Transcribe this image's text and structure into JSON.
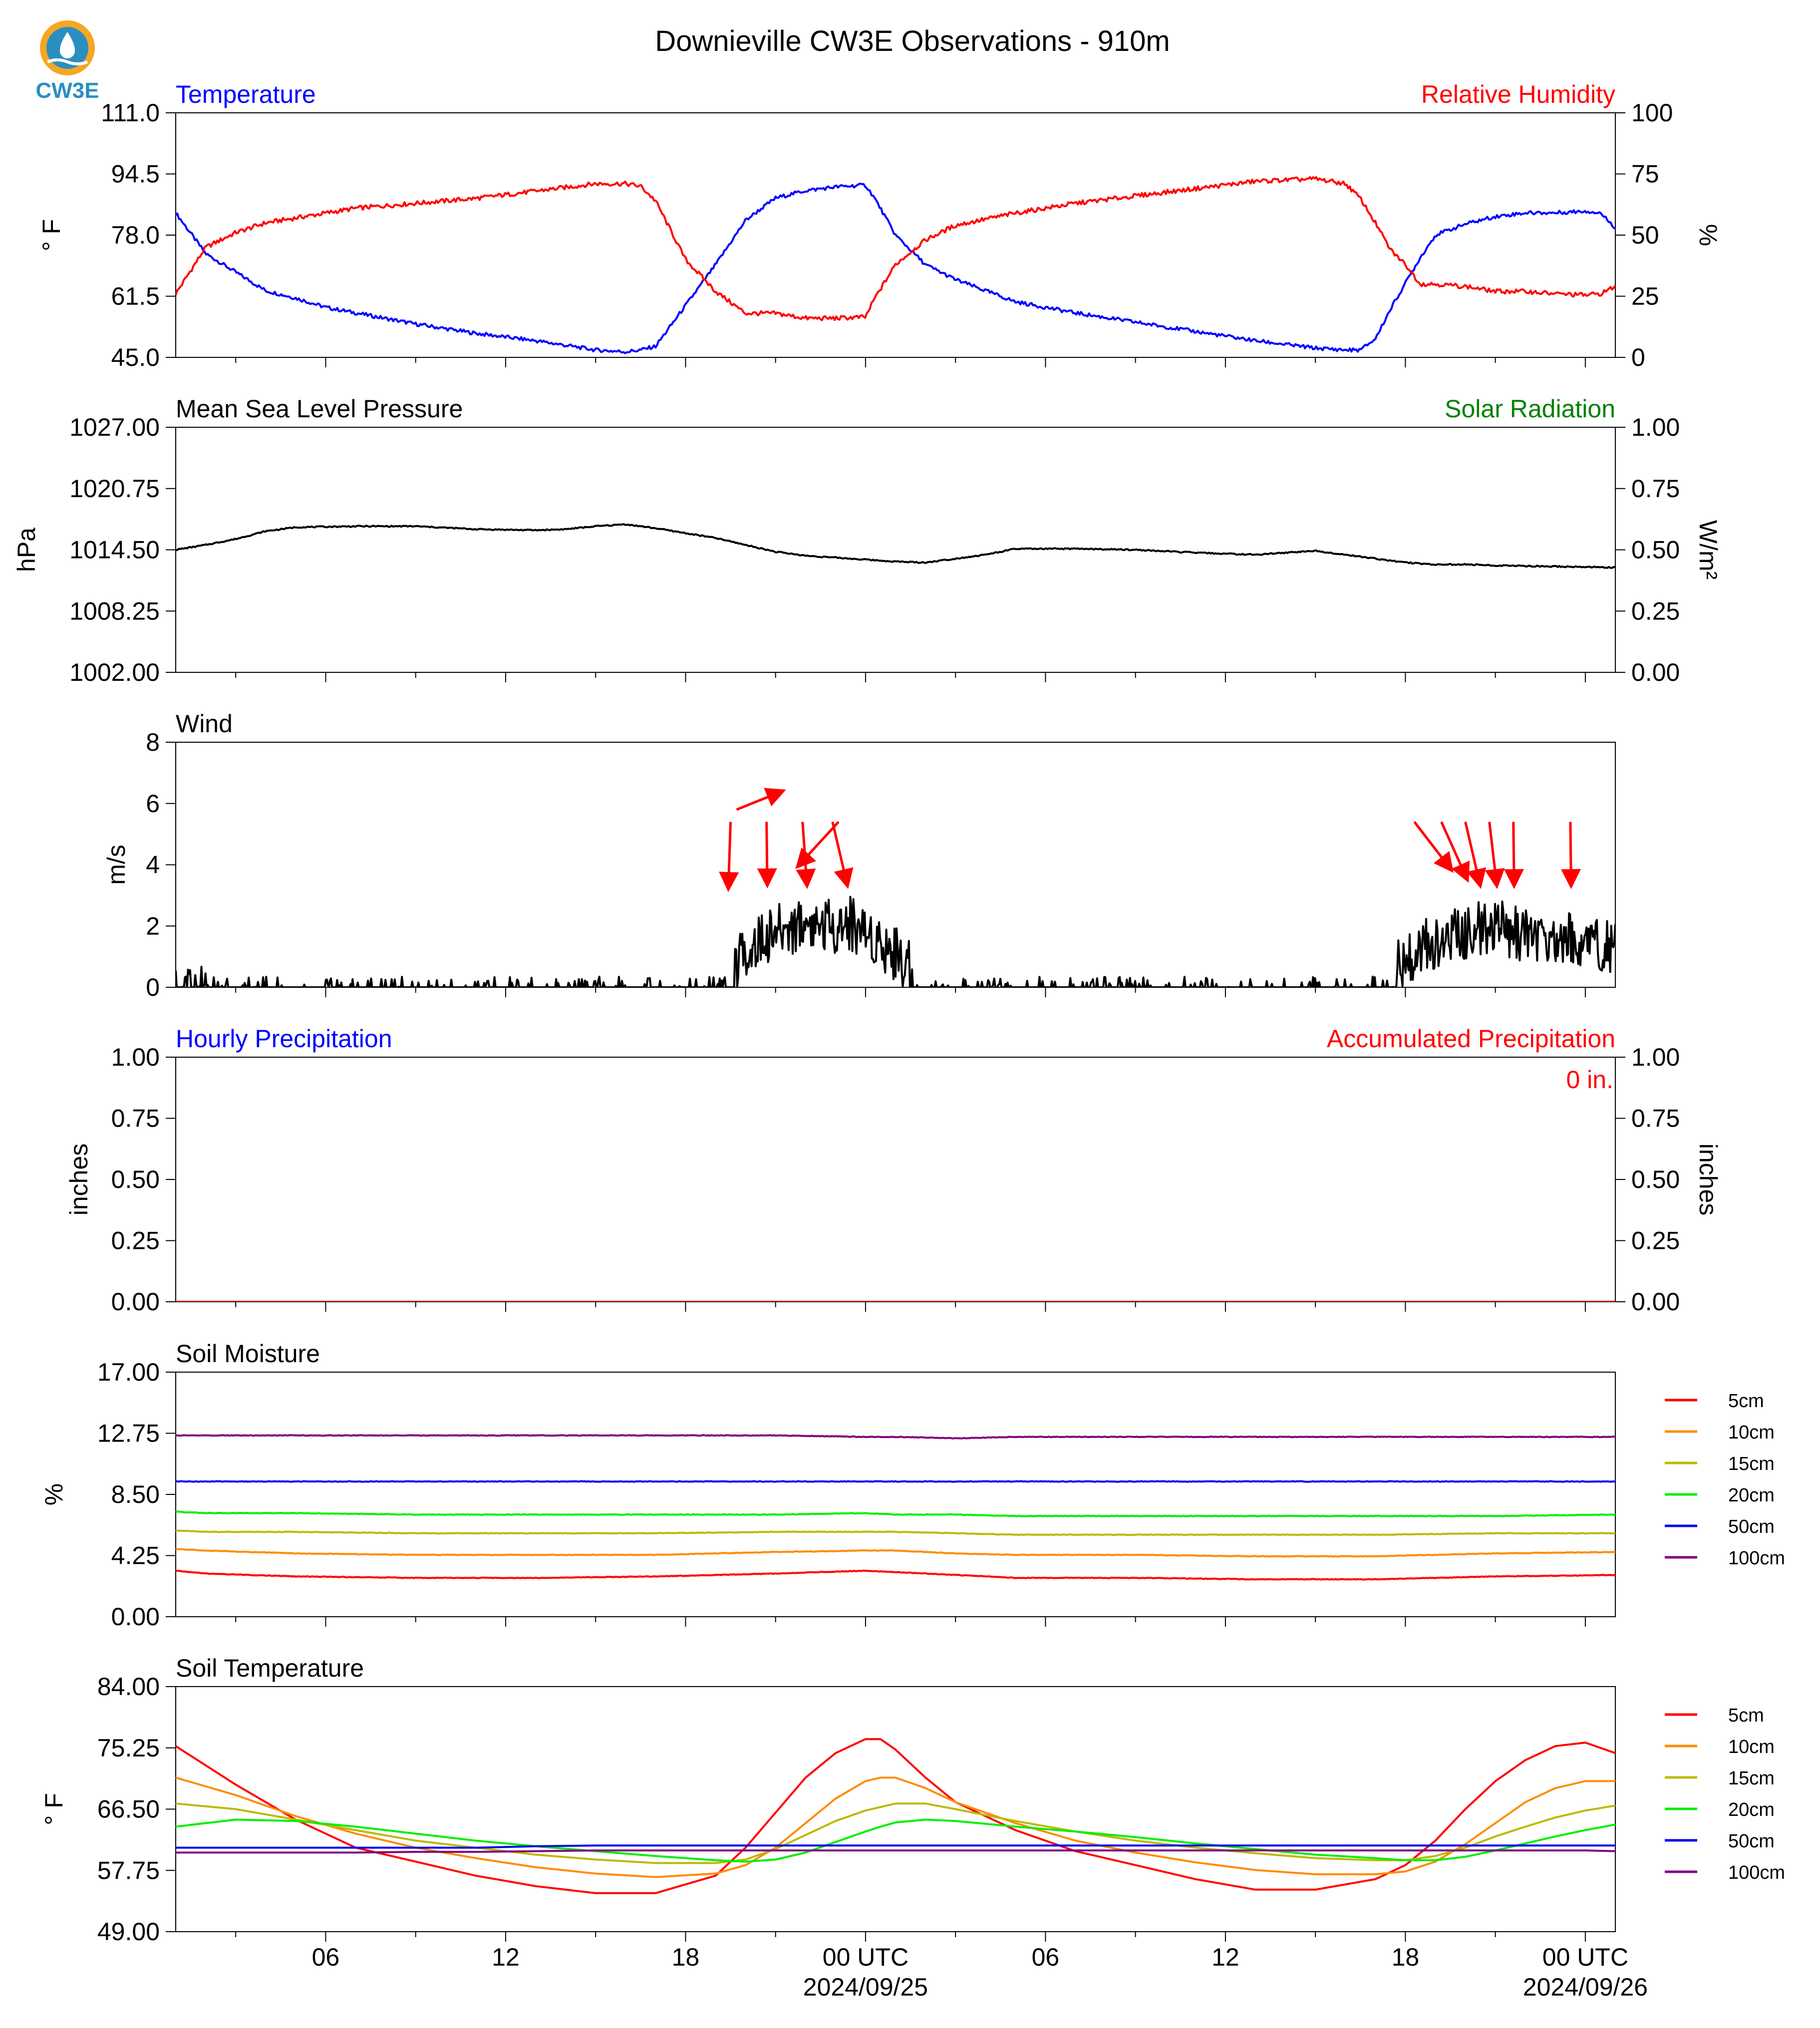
{
  "title": "Downieville CW3E Observations - 910m",
  "logo": {
    "text": "CW3E",
    "icon": "cw3e-drop-logo-icon",
    "colors": [
      "#f5a623",
      "#2a8fc0"
    ]
  },
  "colors": {
    "blue": "#0000ff",
    "red": "#ff0000",
    "green": "#008000",
    "black": "#000000"
  },
  "x_axis": {
    "start_hour": 0,
    "end_hour": 48,
    "tick_labels": [
      {
        "hour": 5,
        "text": "06"
      },
      {
        "hour": 11,
        "text": "12"
      },
      {
        "hour": 17,
        "text": "18"
      },
      {
        "hour": 23,
        "text": "00 UTC",
        "date": "2024/09/25"
      },
      {
        "hour": 29,
        "text": "06"
      },
      {
        "hour": 35,
        "text": "12"
      },
      {
        "hour": 41,
        "text": "18"
      },
      {
        "hour": 47,
        "text": "00 UTC",
        "date": "2024/09/26"
      }
    ]
  },
  "panels": {
    "temp_rh": {
      "left_title": "Temperature",
      "right_title": "Relative Humidity",
      "left_unit": "° F",
      "right_unit": "%",
      "left_ticks": [
        "45.0",
        "61.5",
        "78.0",
        "94.5",
        "111.0"
      ],
      "right_ticks": [
        "0",
        "25",
        "50",
        "75",
        "100"
      ]
    },
    "pressure": {
      "left_title": "Mean Sea Level Pressure",
      "right_title": "Solar Radiation",
      "left_unit": "hPa",
      "right_unit": "W/m²",
      "left_ticks": [
        "1002.00",
        "1008.25",
        "1014.50",
        "1020.75",
        "1027.00"
      ],
      "right_ticks": [
        "0.00",
        "0.25",
        "0.50",
        "0.75",
        "1.00"
      ]
    },
    "wind": {
      "left_title": "Wind",
      "left_unit": "m/s",
      "left_ticks": [
        "0",
        "2",
        "4",
        "6",
        "8"
      ]
    },
    "precip": {
      "left_title": "Hourly Precipitation",
      "right_title": "Accumulated Precipitation",
      "left_unit": "inches",
      "right_unit": "inches",
      "left_ticks": [
        "0.00",
        "0.25",
        "0.50",
        "0.75",
        "1.00"
      ],
      "right_ticks": [
        "0.00",
        "0.25",
        "0.50",
        "0.75",
        "1.00"
      ],
      "accum_label": "0 in."
    },
    "soil_moisture": {
      "left_title": "Soil Moisture",
      "left_unit": "%",
      "left_ticks": [
        "0.00",
        "4.25",
        "8.50",
        "12.75",
        "17.00"
      ]
    },
    "soil_temp": {
      "left_title": "Soil Temperature",
      "left_unit": "° F",
      "left_ticks": [
        "49.00",
        "57.75",
        "66.50",
        "75.25",
        "84.00"
      ]
    }
  },
  "chart_data": [
    {
      "type": "line",
      "x_unit": "hours",
      "x": [
        0,
        1,
        2,
        3,
        4,
        5,
        6,
        8,
        10,
        12,
        14,
        15,
        15.5,
        16,
        17,
        18,
        19,
        20,
        21,
        22,
        23,
        23.3,
        24,
        25,
        26,
        28,
        30,
        32,
        34,
        36,
        38,
        39,
        39.5,
        40,
        40.5,
        41,
        41.5,
        42,
        43,
        44,
        45,
        46,
        47,
        47.5,
        48
      ],
      "series": [
        {
          "name": "Temperature",
          "axis": "left",
          "color": "#0000ff",
          "ylim": [
            45,
            111
          ],
          "values": [
            84,
            73,
            68,
            63,
            61,
            58.5,
            57,
            54,
            51.5,
            49.5,
            47,
            46.5,
            47,
            48,
            59,
            70,
            82,
            88,
            90,
            91,
            91.5,
            88,
            78,
            70,
            66,
            60,
            57,
            54.5,
            52,
            49.5,
            47.5,
            47,
            47,
            50,
            58,
            65,
            72,
            78,
            81,
            83,
            84,
            84,
            84.5,
            84,
            80
          ]
        },
        {
          "name": "Relative Humidity",
          "axis": "right",
          "color": "#ff0000",
          "ylim": [
            0,
            100
          ],
          "values": [
            26,
            45,
            51,
            55,
            57,
            59,
            61,
            63,
            65,
            68,
            71,
            71,
            70,
            64,
            40,
            27,
            18,
            18,
            16,
            16,
            16.5,
            24,
            38,
            48,
            54,
            59,
            63,
            66,
            69,
            72,
            73,
            71,
            65,
            55,
            44,
            38,
            30,
            30,
            29,
            27,
            27,
            26,
            25.5,
            26,
            29
          ]
        }
      ]
    },
    {
      "type": "line",
      "x": [
        0,
        1,
        2,
        3,
        4,
        6,
        8,
        10,
        12,
        13,
        14,
        15,
        16,
        17,
        18,
        19,
        20,
        21,
        22,
        23,
        24,
        25,
        26,
        27,
        28,
        30,
        32,
        34,
        35,
        36,
        37,
        38,
        39,
        40,
        41,
        42,
        43,
        44,
        46,
        48
      ],
      "series": [
        {
          "name": "Mean Sea Level Pressure",
          "axis": "left",
          "color": "#000000",
          "ylim": [
            1002,
            1027
          ],
          "values": [
            1014.5,
            1015.0,
            1015.6,
            1016.4,
            1016.8,
            1016.9,
            1016.9,
            1016.6,
            1016.5,
            1016.6,
            1016.9,
            1017.1,
            1016.7,
            1016.2,
            1015.7,
            1015.0,
            1014.3,
            1013.9,
            1013.7,
            1013.5,
            1013.3,
            1013.2,
            1013.6,
            1014.0,
            1014.6,
            1014.6,
            1014.5,
            1014.2,
            1014.1,
            1014.0,
            1014.2,
            1014.4,
            1014.0,
            1013.6,
            1013.2,
            1013.0,
            1013.0,
            1012.9,
            1012.8,
            1012.7
          ]
        }
      ]
    },
    {
      "type": "line",
      "x": [
        0,
        0.5,
        1,
        3,
        5,
        8,
        11,
        13,
        15,
        16,
        17,
        18,
        18.5,
        19,
        20,
        21,
        22,
        22.5,
        23,
        24,
        25,
        26,
        28,
        32,
        36,
        38,
        39,
        39.5,
        40,
        40.5,
        41,
        42,
        43,
        44,
        45,
        46,
        47,
        48
      ],
      "series": [
        {
          "name": "Wind speed",
          "axis": "left",
          "color": "#000000",
          "ylim": [
            0,
            8
          ],
          "values": [
            0.3,
            0.5,
            0.05,
            0.05,
            0.1,
            0.1,
            0.1,
            0.05,
            0.15,
            0.3,
            0.35,
            0.3,
            0.4,
            1.2,
            1.8,
            2.1,
            2.0,
            2.1,
            1.8,
            1.1,
            0.2,
            0.05,
            0.05,
            0.05,
            0.05,
            0.1,
            0.15,
            0.2,
            0.25,
            0.3,
            1.0,
            1.5,
            1.8,
            2.0,
            1.7,
            1.6,
            1.5,
            1.3
          ]
        }
      ],
      "wind_arrows": [
        {
          "hour": 18.7,
          "y": 5.8,
          "dx": 0.62,
          "dy": 0.25
        },
        {
          "hour": 18.5,
          "y": 5.4,
          "dx": -0.03,
          "dy": -0.9
        },
        {
          "hour": 19.7,
          "y": 5.4,
          "dx": 0.01,
          "dy": -0.85
        },
        {
          "hour": 20.9,
          "y": 5.4,
          "dx": 0.06,
          "dy": -0.86
        },
        {
          "hour": 22.1,
          "y": 5.4,
          "dx": -0.55,
          "dy": -0.6
        },
        {
          "hour": 21.9,
          "y": 5.4,
          "dx": 0.2,
          "dy": -0.86
        },
        {
          "hour": 41.3,
          "y": 5.4,
          "dx": 0.5,
          "dy": -0.65
        },
        {
          "hour": 42.2,
          "y": 5.4,
          "dx": 0.35,
          "dy": -0.78
        },
        {
          "hour": 43.0,
          "y": 5.4,
          "dx": 0.2,
          "dy": -0.86
        },
        {
          "hour": 43.8,
          "y": 5.4,
          "dx": 0.1,
          "dy": -0.86
        },
        {
          "hour": 44.6,
          "y": 5.4,
          "dx": 0.01,
          "dy": -0.86
        },
        {
          "hour": 46.5,
          "y": 5.4,
          "dx": 0.01,
          "dy": -0.86
        }
      ]
    },
    {
      "type": "line",
      "x": [
        0,
        48
      ],
      "series": [
        {
          "name": "Hourly Precipitation",
          "axis": "left",
          "color": "#0000ff",
          "ylim": [
            0,
            1
          ],
          "values": [
            0,
            0
          ]
        },
        {
          "name": "Accumulated Precipitation",
          "axis": "right",
          "color": "#ff0000",
          "ylim": [
            0,
            1
          ],
          "values": [
            0,
            0
          ]
        }
      ]
    },
    {
      "type": "line",
      "x": [
        0,
        1,
        4,
        8,
        12,
        16,
        20,
        23,
        24,
        26,
        28,
        32,
        36,
        40,
        44,
        48
      ],
      "series": [
        {
          "name": "5cm",
          "color": "#ff0000",
          "ylim": [
            0,
            17
          ],
          "values": [
            3.2,
            3.0,
            2.8,
            2.7,
            2.7,
            2.8,
            3.0,
            3.2,
            3.1,
            2.9,
            2.7,
            2.7,
            2.6,
            2.6,
            2.8,
            2.9
          ]
        },
        {
          "name": "10cm",
          "color": "#ff8c00",
          "ylim": [
            0,
            17
          ],
          "values": [
            4.7,
            4.6,
            4.4,
            4.3,
            4.3,
            4.3,
            4.5,
            4.6,
            4.6,
            4.4,
            4.3,
            4.3,
            4.2,
            4.2,
            4.4,
            4.5
          ]
        },
        {
          "name": "15cm",
          "color": "#bdb800",
          "ylim": [
            0,
            17
          ],
          "values": [
            6.0,
            5.9,
            5.9,
            5.8,
            5.8,
            5.8,
            5.9,
            5.9,
            5.9,
            5.8,
            5.7,
            5.7,
            5.7,
            5.7,
            5.8,
            5.8
          ]
        },
        {
          "name": "20cm",
          "color": "#00ee00",
          "ylim": [
            0,
            17
          ],
          "values": [
            7.3,
            7.2,
            7.2,
            7.1,
            7.1,
            7.1,
            7.1,
            7.2,
            7.1,
            7.1,
            7.0,
            7.0,
            7.0,
            7.0,
            7.0,
            7.1
          ]
        },
        {
          "name": "50cm",
          "color": "#0000ee",
          "ylim": [
            0,
            17
          ],
          "values": [
            9.4,
            9.4,
            9.4,
            9.4,
            9.4,
            9.4,
            9.4,
            9.4,
            9.4,
            9.4,
            9.4,
            9.4,
            9.4,
            9.4,
            9.4,
            9.4
          ]
        },
        {
          "name": "100cm",
          "color": "#800080",
          "ylim": [
            0,
            17
          ],
          "values": [
            12.6,
            12.6,
            12.6,
            12.6,
            12.6,
            12.6,
            12.6,
            12.5,
            12.5,
            12.4,
            12.5,
            12.5,
            12.5,
            12.5,
            12.5,
            12.5
          ]
        }
      ]
    },
    {
      "type": "line",
      "x": [
        0,
        2,
        4,
        6,
        8,
        10,
        12,
        14,
        16,
        18,
        19,
        20,
        21,
        22,
        23,
        23.5,
        24,
        25,
        26,
        28,
        30,
        32,
        34,
        36,
        38,
        40,
        41,
        42,
        43,
        44,
        45,
        46,
        47,
        48
      ],
      "series": [
        {
          "name": "5cm",
          "color": "#ff0000",
          "ylim": [
            49,
            84
          ],
          "values": [
            75.5,
            70,
            65,
            61,
            59,
            57,
            55.5,
            54.5,
            54.5,
            57,
            61,
            66,
            71,
            74.5,
            76.5,
            76.5,
            75,
            71,
            67.5,
            63.5,
            60.5,
            58.5,
            56.5,
            55,
            55,
            56.5,
            58.5,
            62,
            66.5,
            70.5,
            73.5,
            75.5,
            76,
            74.5
          ]
        },
        {
          "name": "10cm",
          "color": "#ff8c00",
          "ylim": [
            49,
            84
          ],
          "values": [
            71,
            68.5,
            65.5,
            63,
            61,
            59.5,
            58.2,
            57.3,
            56.8,
            57.3,
            58.5,
            61,
            64.5,
            68,
            70.5,
            71,
            71,
            69.5,
            67.5,
            64.5,
            62,
            60.3,
            58.9,
            57.8,
            57.2,
            57.2,
            57.6,
            59,
            61.5,
            64.5,
            67.5,
            69.5,
            70.5,
            70.5
          ]
        },
        {
          "name": "15cm",
          "color": "#bdb800",
          "ylim": [
            49,
            84
          ],
          "values": [
            67.3,
            66.5,
            65,
            63.5,
            62,
            61,
            60,
            59.3,
            58.8,
            58.8,
            59.3,
            60.8,
            62.8,
            64.8,
            66.3,
            66.8,
            67.3,
            67.3,
            66.5,
            64.8,
            63.3,
            62,
            61,
            60.2,
            59.5,
            59.2,
            59.2,
            59.8,
            61,
            62.6,
            64,
            65.3,
            66.3,
            67
          ]
        },
        {
          "name": "20cm",
          "color": "#00ee00",
          "ylim": [
            49,
            84
          ],
          "values": [
            64,
            65,
            64.8,
            64,
            63,
            62,
            61.2,
            60.5,
            59.8,
            59.2,
            59,
            59.3,
            60.3,
            61.8,
            63.3,
            64,
            64.6,
            65,
            64.8,
            64,
            63.3,
            62.5,
            61.6,
            60.8,
            60,
            59.5,
            59.2,
            59.2,
            59.7,
            60.6,
            61.6,
            62.6,
            63.5,
            64.3
          ]
        },
        {
          "name": "50cm",
          "color": "#0000ee",
          "ylim": [
            49,
            84
          ],
          "values": [
            61,
            61,
            61,
            61,
            61,
            61,
            61.2,
            61.3,
            61.3,
            61.3,
            61.3,
            61.3,
            61.3,
            61.3,
            61.3,
            61.3,
            61.3,
            61.3,
            61.3,
            61.3,
            61.3,
            61.3,
            61.3,
            61.3,
            61.3,
            61.3,
            61.3,
            61.3,
            61.3,
            61.3,
            61.3,
            61.3,
            61.3,
            61.3
          ]
        },
        {
          "name": "100cm",
          "color": "#800080",
          "ylim": [
            49,
            84
          ],
          "values": [
            60.3,
            60.3,
            60.3,
            60.3,
            60.4,
            60.4,
            60.5,
            60.6,
            60.6,
            60.6,
            60.6,
            60.6,
            60.6,
            60.6,
            60.6,
            60.6,
            60.6,
            60.6,
            60.6,
            60.6,
            60.6,
            60.6,
            60.6,
            60.6,
            60.6,
            60.6,
            60.6,
            60.6,
            60.6,
            60.6,
            60.6,
            60.6,
            60.6,
            60.5
          ]
        }
      ]
    }
  ]
}
